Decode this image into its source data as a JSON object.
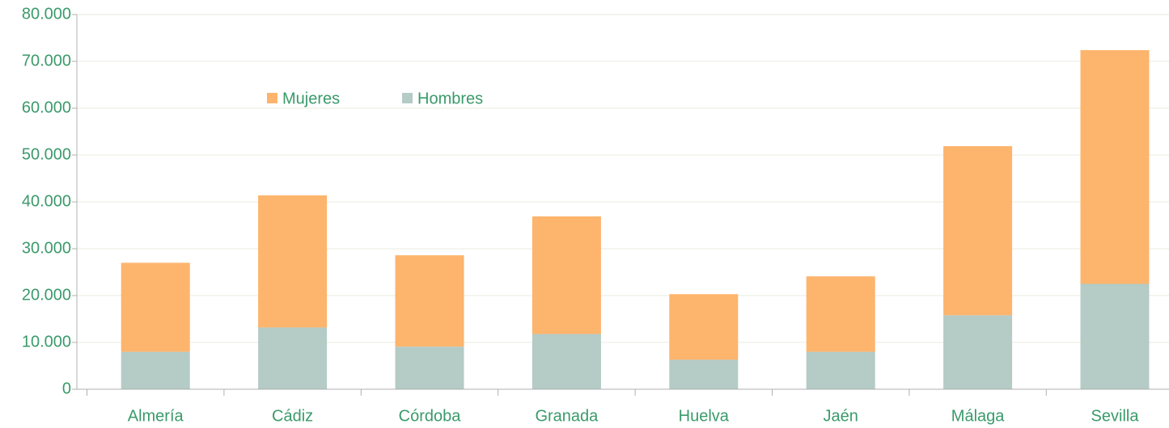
{
  "chart_data": {
    "type": "bar",
    "stacked": true,
    "categories": [
      "Almería",
      "Cádiz",
      "Córdoba",
      "Granada",
      "Huelva",
      "Jaén",
      "Málaga",
      "Sevilla"
    ],
    "series": [
      {
        "name": "Mujeres",
        "color": "#fdb46c",
        "values": [
          19000,
          28200,
          19500,
          25100,
          14000,
          16100,
          36100,
          49900
        ]
      },
      {
        "name": "Hombres",
        "color": "#b4cbc6",
        "values": [
          8000,
          13200,
          9100,
          11800,
          6300,
          8000,
          15800,
          22500
        ]
      }
    ],
    "ylim": [
      0,
      80000
    ],
    "yticks": [
      0,
      {
        "value": 10000,
        "label": "10.000"
      },
      {
        "value": 20000,
        "label": "20.000"
      },
      {
        "value": 30000,
        "label": "30.000"
      },
      {
        "value": 40000,
        "label": "40.000"
      },
      {
        "value": 50000,
        "label": "50.000"
      },
      {
        "value": 60000,
        "label": "60.000"
      },
      {
        "value": 70000,
        "label": "70.000"
      },
      {
        "value": 80000,
        "label": "80.000"
      }
    ],
    "grid": true
  }
}
